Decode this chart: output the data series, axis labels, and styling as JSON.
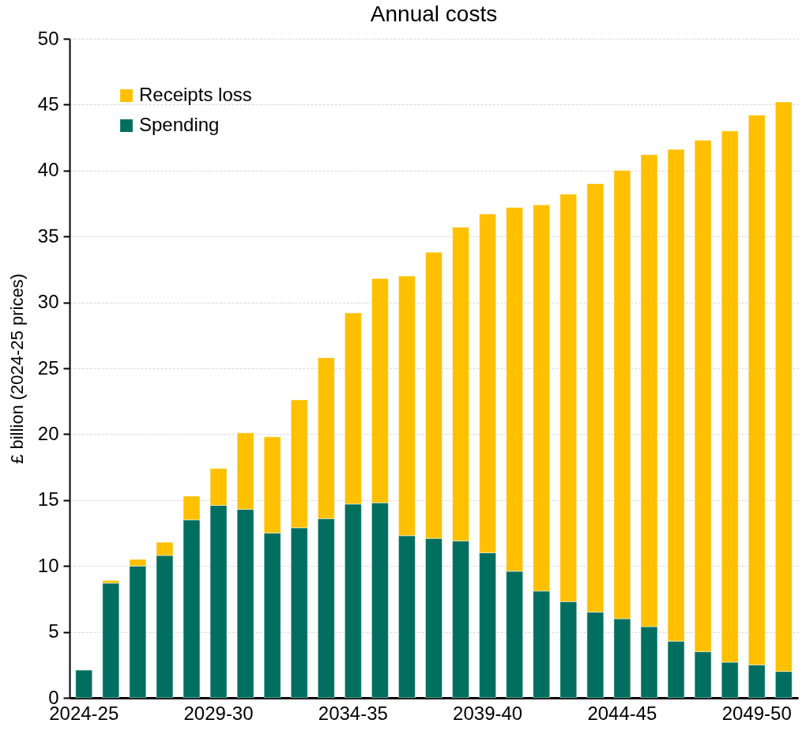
{
  "chart_data": {
    "type": "bar",
    "title": "Annual costs",
    "ylabel": "£ billion (2024-25 prices)",
    "categories": [
      "2024-25",
      null,
      null,
      null,
      null,
      "2029-30",
      null,
      null,
      null,
      null,
      "2034-35",
      null,
      null,
      null,
      null,
      "2039-40",
      null,
      null,
      null,
      null,
      "2044-45",
      null,
      null,
      null,
      null,
      "2049-50",
      null
    ],
    "stacked": true,
    "series": [
      {
        "name": "Spending",
        "color": "#006f5f",
        "values": [
          2.1,
          8.7,
          10.0,
          10.8,
          13.5,
          14.6,
          14.3,
          12.5,
          12.9,
          13.6,
          14.7,
          14.8,
          12.3,
          12.1,
          11.9,
          11.0,
          9.6,
          8.1,
          7.3,
          6.5,
          6.0,
          5.4,
          4.3,
          3.5,
          2.7,
          2.5,
          2.0
        ]
      },
      {
        "name": "Receipts loss",
        "color": "#ffc000",
        "values": [
          null,
          0.2,
          0.5,
          1.0,
          1.8,
          2.8,
          5.8,
          7.3,
          9.7,
          12.2,
          14.5,
          17.0,
          19.7,
          21.7,
          23.8,
          25.7,
          27.6,
          29.3,
          30.9,
          32.5,
          34.0,
          35.8,
          37.3,
          38.8,
          40.3,
          41.7,
          43.2
        ]
      }
    ],
    "ylim": [
      0,
      50
    ],
    "yticks": [
      0,
      5,
      10,
      15,
      20,
      25,
      30,
      35,
      40,
      45,
      50
    ],
    "grid": "y",
    "legend": "top left"
  }
}
